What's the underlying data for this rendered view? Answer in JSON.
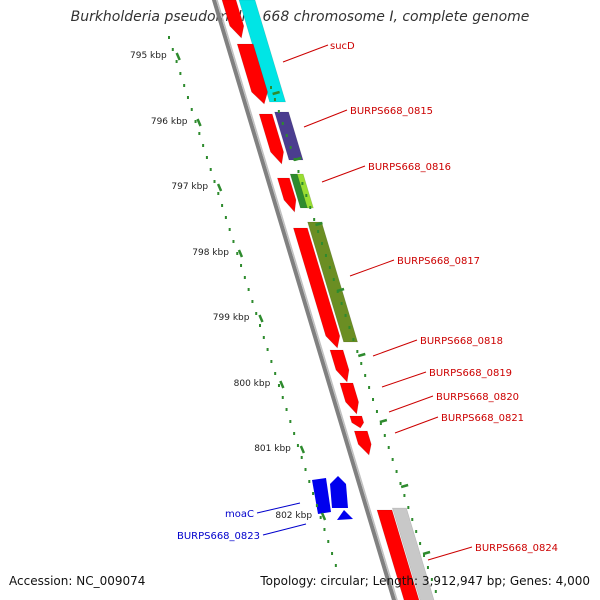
{
  "title": "Burkholderia pseudomallei 668 chromosome I, complete genome",
  "footer": {
    "accession": "Accession: NC_009074",
    "summary": "Topology: circular; Length: 3,912,947 bp; Genes: 4,000"
  },
  "colors": {
    "backbone": "#808080",
    "forward_gene": "#ff0000",
    "reverse_gene": "#0000ee",
    "tick": "#2e8b2e",
    "cyan_feature": "#00e5e5",
    "purple_feature": "#4b3d8f",
    "yellowgreen_feature": "#99dd33",
    "green_feature": "#2e8b2e",
    "olive_feature": "#6b8e23",
    "grey_feature": "#c8c8c8",
    "forward_label": "#cc0000",
    "reverse_label": "#0000cc"
  },
  "scale": {
    "ticks": [
      {
        "kbp": 795,
        "label": "795 kbp"
      },
      {
        "kbp": 796,
        "label": "796 kbp"
      },
      {
        "kbp": 797,
        "label": "797 kbp"
      },
      {
        "kbp": 798,
        "label": "798 kbp"
      },
      {
        "kbp": 799,
        "label": "799 kbp"
      },
      {
        "kbp": 800,
        "label": "800 kbp"
      },
      {
        "kbp": 801,
        "label": "801 kbp"
      },
      {
        "kbp": 802,
        "label": "802 kbp"
      }
    ]
  },
  "genes": [
    {
      "name": "sucD",
      "strand": "forward",
      "color": "forward_gene"
    },
    {
      "name": "BURPS668_0815",
      "strand": "forward",
      "color": "forward_gene"
    },
    {
      "name": "BURPS668_0816",
      "strand": "forward",
      "color": "forward_gene"
    },
    {
      "name": "BURPS668_0817",
      "strand": "forward",
      "color": "forward_gene"
    },
    {
      "name": "BURPS668_0818",
      "strand": "forward",
      "color": "forward_gene"
    },
    {
      "name": "BURPS668_0819",
      "strand": "forward",
      "color": "forward_gene"
    },
    {
      "name": "BURPS668_0820",
      "strand": "forward",
      "color": "forward_gene"
    },
    {
      "name": "BURPS668_0821",
      "strand": "forward",
      "color": "forward_gene"
    },
    {
      "name": "moaC",
      "strand": "reverse",
      "color": "reverse_gene"
    },
    {
      "name": "BURPS668_0823",
      "strand": "reverse",
      "color": "reverse_gene"
    },
    {
      "name": "BURPS668_0824",
      "strand": "forward",
      "color": "forward_gene"
    }
  ]
}
